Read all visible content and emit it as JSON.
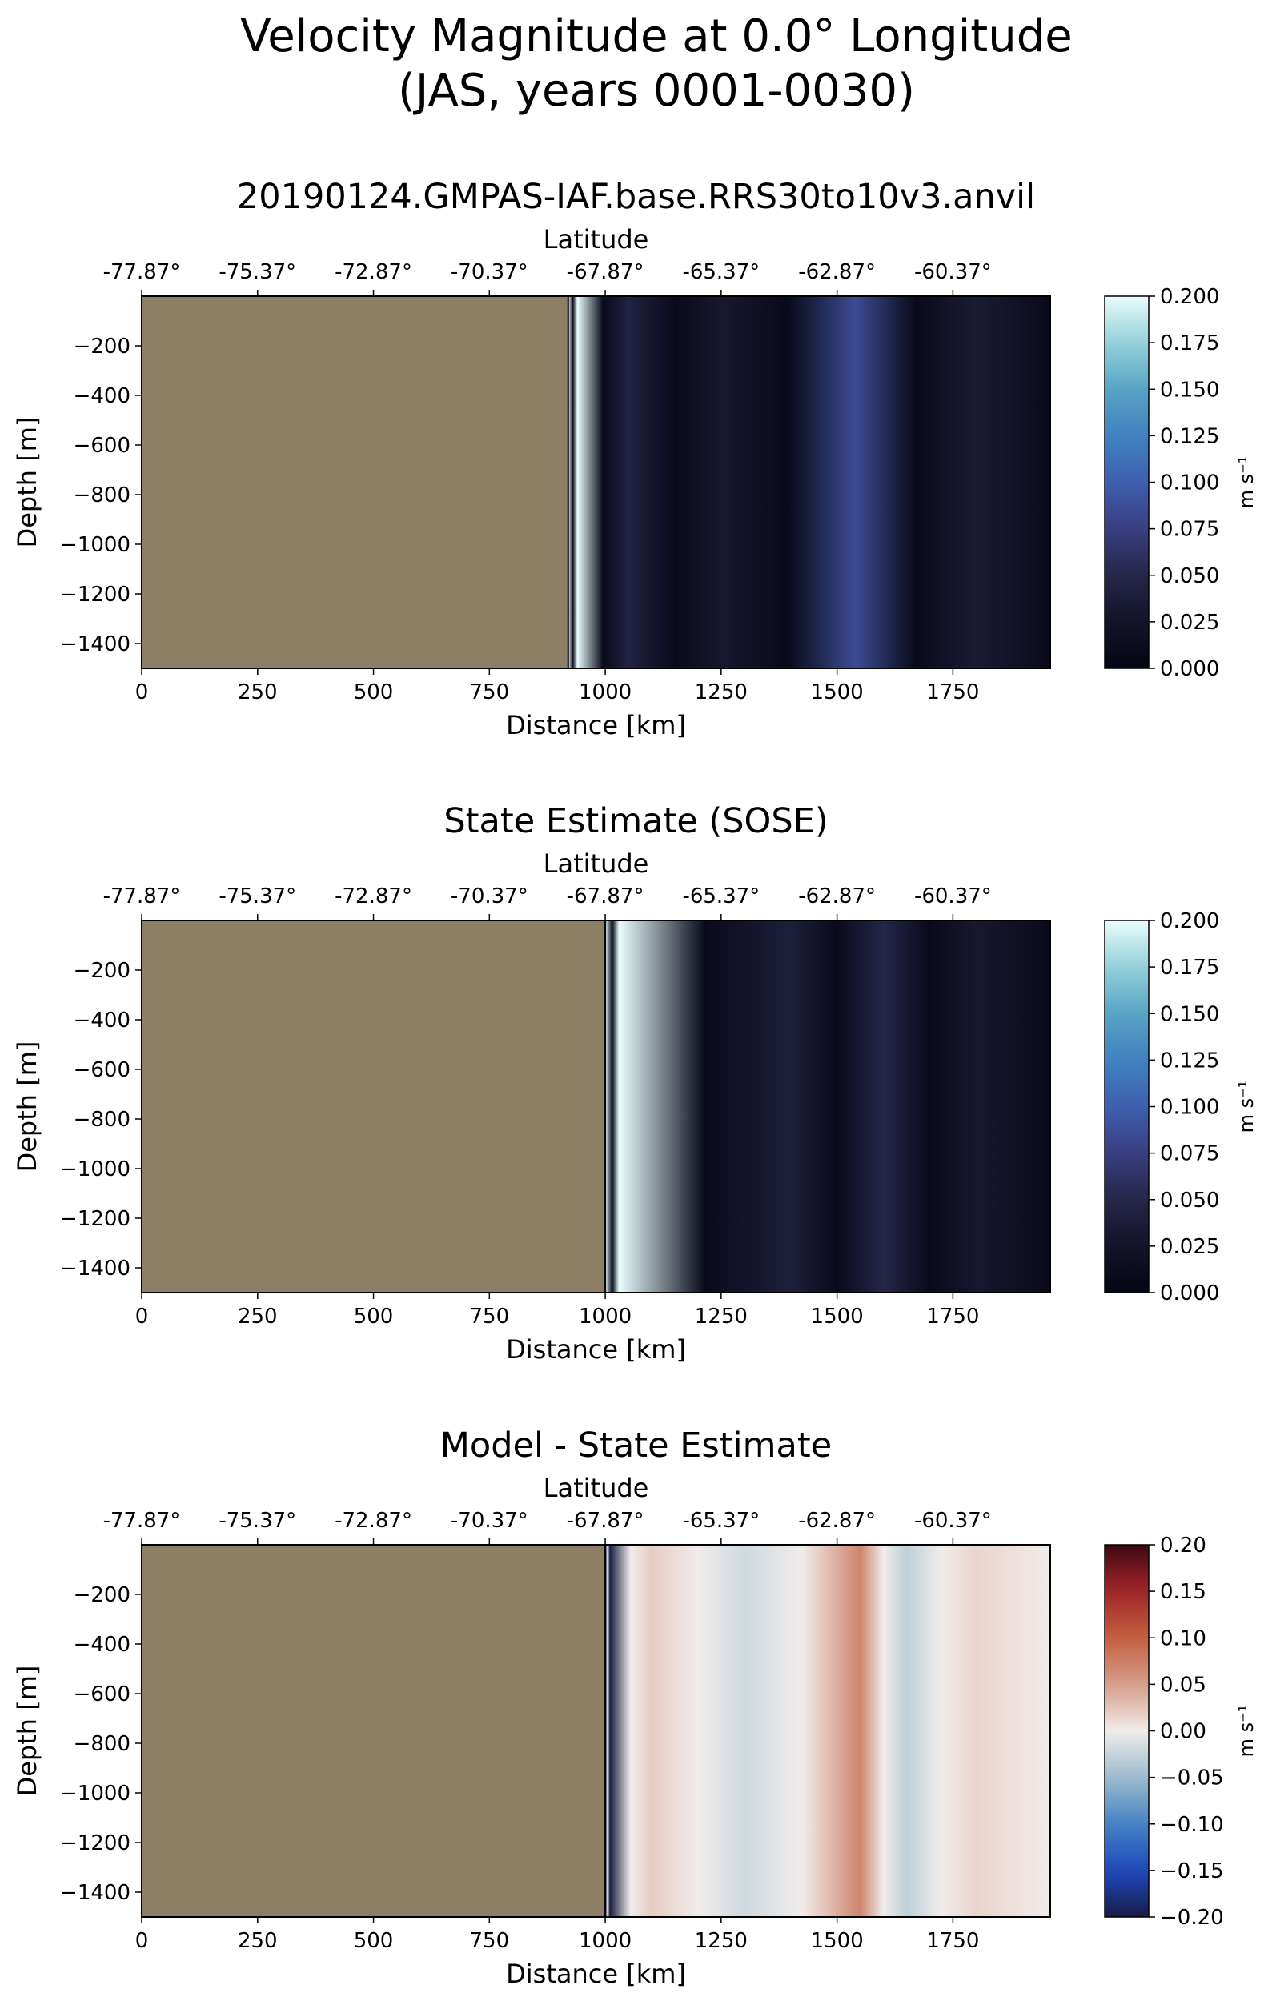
{
  "figure": {
    "title_line1": "Velocity Magnitude at 0.0° Longitude",
    "title_line2": "(JAS, years 0001-0030)"
  },
  "panel_style": {
    "land_color": "#8d7f66",
    "ocean_background": "#12121e"
  },
  "chart_data": [
    {
      "type": "heatmap",
      "title": "20190124.GMPAS-IAF.base.RRS30to10v3.anvil",
      "xlabel": "Distance [km]",
      "ylabel": "Depth [m]",
      "top_xlabel": "Latitude",
      "xlim": [
        0,
        1960
      ],
      "ylim": [
        -1500,
        0
      ],
      "xticks": [
        "0",
        "250",
        "500",
        "750",
        "1000",
        "1250",
        "1500",
        "1750"
      ],
      "yticks": [
        "-200",
        "-400",
        "-600",
        "-800",
        "-1000",
        "-1200",
        "-1400"
      ],
      "top_ticks": [
        "-77.87°",
        "-75.37°",
        "-72.87°",
        "-70.37°",
        "-67.87°",
        "-65.37°",
        "-62.87°",
        "-60.37°"
      ],
      "land_edge_km": 920,
      "colormap": "ice",
      "colorbar": {
        "label": "m s⁻¹",
        "range": [
          0,
          0.2
        ],
        "ticks": [
          "0.200",
          "0.175",
          "0.150",
          "0.125",
          "0.100",
          "0.075",
          "0.050",
          "0.025",
          "0.000"
        ]
      },
      "features": [
        {
          "distance_km": 940,
          "value": 0.2
        },
        {
          "distance_km": 1050,
          "value": 0.045
        },
        {
          "distance_km": 1250,
          "value": 0.03
        },
        {
          "distance_km": 1540,
          "value": 0.085
        },
        {
          "distance_km": 1800,
          "value": 0.035
        }
      ]
    },
    {
      "type": "heatmap",
      "title": "State Estimate (SOSE)",
      "xlabel": "Distance [km]",
      "ylabel": "Depth [m]",
      "top_xlabel": "Latitude",
      "xlim": [
        0,
        1960
      ],
      "ylim": [
        -1500,
        0
      ],
      "xticks": [
        "0",
        "250",
        "500",
        "750",
        "1000",
        "1250",
        "1500",
        "1750"
      ],
      "yticks": [
        "-200",
        "-400",
        "-600",
        "-800",
        "-1000",
        "-1200",
        "-1400"
      ],
      "top_ticks": [
        "-77.87°",
        "-75.37°",
        "-72.87°",
        "-70.37°",
        "-67.87°",
        "-65.37°",
        "-62.87°",
        "-60.37°"
      ],
      "land_edge_km": 1000,
      "colormap": "ice",
      "colorbar": {
        "label": "m s⁻¹",
        "range": [
          0,
          0.2
        ],
        "ticks": [
          "0.200",
          "0.175",
          "0.150",
          "0.125",
          "0.100",
          "0.075",
          "0.050",
          "0.025",
          "0.000"
        ]
      },
      "features": [
        {
          "distance_km": 1030,
          "value": 0.2
        },
        {
          "distance_km": 1400,
          "value": 0.04
        },
        {
          "distance_km": 1600,
          "value": 0.05
        },
        {
          "distance_km": 1800,
          "value": 0.03
        }
      ]
    },
    {
      "type": "heatmap",
      "title": "Model - State Estimate",
      "xlabel": "Distance [km]",
      "ylabel": "Depth [m]",
      "top_xlabel": "Latitude",
      "xlim": [
        0,
        1960
      ],
      "ylim": [
        -1500,
        0
      ],
      "xticks": [
        "0",
        "250",
        "500",
        "750",
        "1000",
        "1250",
        "1500",
        "1750"
      ],
      "yticks": [
        "-200",
        "-400",
        "-600",
        "-800",
        "-1000",
        "-1200",
        "-1400"
      ],
      "top_ticks": [
        "-77.87°",
        "-75.37°",
        "-72.87°",
        "-70.37°",
        "-67.87°",
        "-65.37°",
        "-62.87°",
        "-60.37°"
      ],
      "land_edge_km": 1000,
      "colormap": "balance",
      "colorbar": {
        "label": "m s⁻¹",
        "range": [
          -0.2,
          0.2
        ],
        "ticks": [
          "0.20",
          "0.15",
          "0.10",
          "0.05",
          "0.00",
          "−0.05",
          "−0.10",
          "−0.15",
          "−0.20"
        ]
      },
      "features": [
        {
          "distance_km": 1010,
          "value": -0.2
        },
        {
          "distance_km": 1100,
          "value": 0.02
        },
        {
          "distance_km": 1300,
          "value": -0.02
        },
        {
          "distance_km": 1550,
          "value": 0.07
        },
        {
          "distance_km": 1650,
          "value": -0.03
        },
        {
          "distance_km": 1800,
          "value": 0.015
        }
      ]
    }
  ]
}
